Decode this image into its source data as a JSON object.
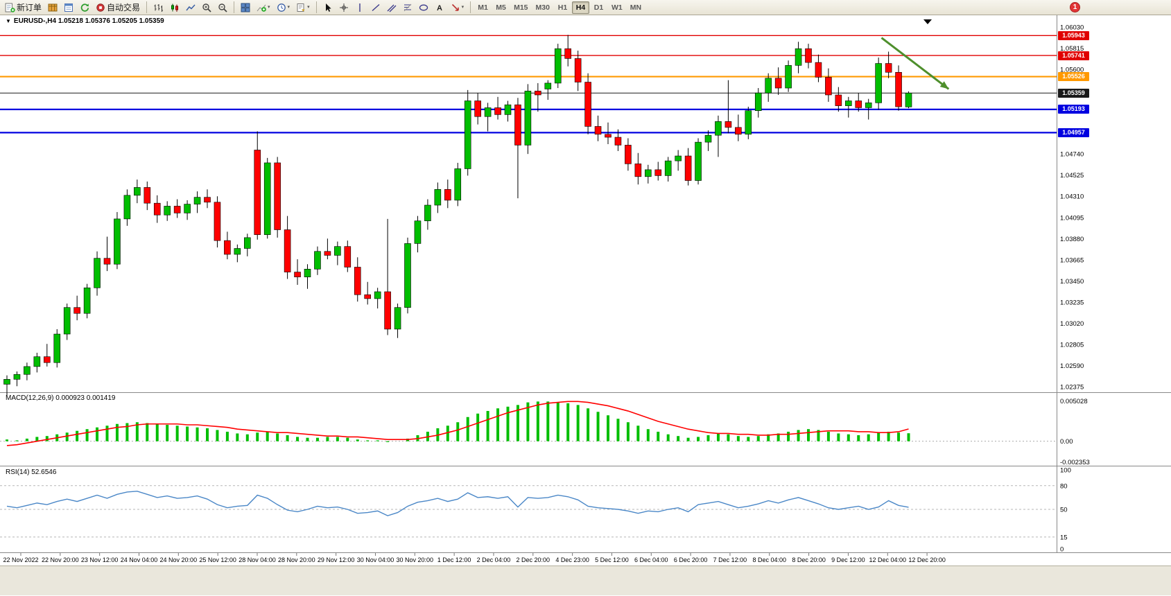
{
  "toolbar": {
    "new_order_label": "新订单",
    "auto_trading_label": "自动交易",
    "timeframes": [
      "M1",
      "M5",
      "M15",
      "M30",
      "H1",
      "H4",
      "D1",
      "W1",
      "MN"
    ],
    "active_timeframe": "H4",
    "notification_count": "1"
  },
  "chart_header": {
    "title": "EURUSD-,H4 1.05218 1.05376 1.05205 1.05359"
  },
  "panels": {
    "macd_label": "MACD(12,26,9) 0.000923 0.001419",
    "rsi_label": "RSI(14) 52.6546"
  },
  "chart_data": {
    "type": "candlestick",
    "symbol": "EURUSD-",
    "timeframe": "H4",
    "current_ohlc": {
      "open": 1.05218,
      "high": 1.05376,
      "low": 1.05205,
      "close": 1.05359
    },
    "colors": {
      "up": "#00BE00",
      "down": "#FF0000",
      "wick": "#000000",
      "background": "#FFFFFF",
      "macd_histogram": "#00BE00",
      "macd_signal": "#FF0000",
      "rsi_line": "#4A87C7",
      "arrow": "#4E8F2C"
    },
    "y_axis": {
      "min": 1.02375,
      "max": 1.0603,
      "tick_step": 0.00215,
      "ticks": [
        "1.06030",
        "1.05815",
        "1.05600",
        "1.05385",
        "1.05170",
        "1.04955",
        "1.04740",
        "1.04525",
        "1.04310",
        "1.04095",
        "1.03880",
        "1.03665",
        "1.03450",
        "1.03235",
        "1.03020",
        "1.02805",
        "1.02590",
        "1.02375"
      ]
    },
    "levels": [
      {
        "value": 1.05943,
        "badge_text": "1.05943",
        "color": "#E00000",
        "width": 1.4
      },
      {
        "value": 1.05741,
        "badge_text": "1.05741",
        "color": "#E00000",
        "width": 1.4
      },
      {
        "value": 1.05526,
        "badge_text": "1.05526",
        "color": "#FF9900",
        "width": 2.2
      },
      {
        "value": 1.05359,
        "badge_text": "1.05359",
        "color": "#1A1A1A",
        "width": 1
      },
      {
        "value": 1.05193,
        "badge_text": "1.05193",
        "color": "#0000E0",
        "width": 2.2
      },
      {
        "value": 1.04957,
        "badge_text": "1.04957",
        "color": "#0000E0",
        "width": 2.2
      }
    ],
    "candles": [
      [
        1.024,
        1.0249,
        1.0228,
        1.0245
      ],
      [
        1.0245,
        1.0253,
        1.0238,
        1.025
      ],
      [
        1.025,
        1.0262,
        1.0244,
        1.0258
      ],
      [
        1.0258,
        1.0272,
        1.0252,
        1.0268
      ],
      [
        1.0268,
        1.0281,
        1.0258,
        1.0262
      ],
      [
        1.0262,
        1.0296,
        1.0257,
        1.0291
      ],
      [
        1.0291,
        1.0322,
        1.0285,
        1.0318
      ],
      [
        1.0318,
        1.033,
        1.0305,
        1.0312
      ],
      [
        1.0312,
        1.0342,
        1.0307,
        1.0338
      ],
      [
        1.0338,
        1.0375,
        1.033,
        1.0368
      ],
      [
        1.0368,
        1.039,
        1.0355,
        1.0362
      ],
      [
        1.0362,
        1.0415,
        1.0357,
        1.0408
      ],
      [
        1.0408,
        1.0438,
        1.0401,
        1.0432
      ],
      [
        1.0432,
        1.0448,
        1.0424,
        1.044
      ],
      [
        1.044,
        1.0446,
        1.0417,
        1.0424
      ],
      [
        1.0424,
        1.0432,
        1.0404,
        1.0412
      ],
      [
        1.0412,
        1.0426,
        1.0406,
        1.0421
      ],
      [
        1.0421,
        1.0428,
        1.0409,
        1.0414
      ],
      [
        1.0414,
        1.0427,
        1.0407,
        1.0423
      ],
      [
        1.0423,
        1.0436,
        1.0414,
        1.043
      ],
      [
        1.043,
        1.0438,
        1.0419,
        1.0425
      ],
      [
        1.0425,
        1.0431,
        1.0379,
        1.0386
      ],
      [
        1.0386,
        1.0395,
        1.0367,
        1.0372
      ],
      [
        1.0372,
        1.0382,
        1.0364,
        1.0378
      ],
      [
        1.0378,
        1.0393,
        1.037,
        1.0389
      ],
      [
        1.0478,
        1.0497,
        1.0387,
        1.0392
      ],
      [
        1.0392,
        1.047,
        1.0388,
        1.0465
      ],
      [
        1.0465,
        1.0471,
        1.0389,
        1.0397
      ],
      [
        1.0397,
        1.0411,
        1.0347,
        1.0354
      ],
      [
        1.0354,
        1.0367,
        1.0341,
        1.0349
      ],
      [
        1.0349,
        1.0362,
        1.0337,
        1.0357
      ],
      [
        1.0357,
        1.038,
        1.0351,
        1.0375
      ],
      [
        1.0375,
        1.0388,
        1.0367,
        1.0371
      ],
      [
        1.0371,
        1.0385,
        1.0361,
        1.038
      ],
      [
        1.038,
        1.0386,
        1.0354,
        1.0359
      ],
      [
        1.0359,
        1.0369,
        1.0324,
        1.0331
      ],
      [
        1.0331,
        1.0344,
        1.0321,
        1.0327
      ],
      [
        1.0327,
        1.0338,
        1.0317,
        1.0334
      ],
      [
        1.0334,
        1.0408,
        1.029,
        1.0296
      ],
      [
        1.0296,
        1.0322,
        1.0287,
        1.0318
      ],
      [
        1.0318,
        1.0389,
        1.0312,
        1.0383
      ],
      [
        1.0383,
        1.0411,
        1.0374,
        1.0406
      ],
      [
        1.0406,
        1.0428,
        1.0397,
        1.0422
      ],
      [
        1.0422,
        1.0445,
        1.0414,
        1.0438
      ],
      [
        1.0438,
        1.0448,
        1.0419,
        1.0427
      ],
      [
        1.0427,
        1.0465,
        1.0421,
        1.0459
      ],
      [
        1.0459,
        1.0539,
        1.0452,
        1.0528
      ],
      [
        1.0528,
        1.0536,
        1.0504,
        1.0512
      ],
      [
        1.0512,
        1.0526,
        1.0497,
        1.0521
      ],
      [
        1.0521,
        1.0532,
        1.0509,
        1.0514
      ],
      [
        1.0514,
        1.0528,
        1.0507,
        1.0524
      ],
      [
        1.0524,
        1.0531,
        1.0429,
        1.0483
      ],
      [
        1.0483,
        1.0545,
        1.0474,
        1.0538
      ],
      [
        1.0538,
        1.0546,
        1.0517,
        1.0534
      ],
      [
        1.054,
        1.0549,
        1.0529,
        1.0546
      ],
      [
        1.0546,
        1.0586,
        1.0541,
        1.0581
      ],
      [
        1.0581,
        1.0595,
        1.0563,
        1.0571
      ],
      [
        1.0571,
        1.0579,
        1.0538,
        1.0547
      ],
      [
        1.0547,
        1.0556,
        1.0494,
        1.0502
      ],
      [
        1.0502,
        1.0513,
        1.0487,
        1.0494
      ],
      [
        1.0494,
        1.0506,
        1.0484,
        1.0491
      ],
      [
        1.0491,
        1.0499,
        1.0477,
        1.0483
      ],
      [
        1.0483,
        1.049,
        1.0457,
        1.0464
      ],
      [
        1.0464,
        1.0475,
        1.0443,
        1.0451
      ],
      [
        1.0451,
        1.0463,
        1.0444,
        1.0458
      ],
      [
        1.0458,
        1.0466,
        1.0447,
        1.0452
      ],
      [
        1.0452,
        1.0471,
        1.0446,
        1.0467
      ],
      [
        1.0467,
        1.0478,
        1.0457,
        1.0472
      ],
      [
        1.0472,
        1.048,
        1.0442,
        1.0447
      ],
      [
        1.0447,
        1.049,
        1.0443,
        1.0486
      ],
      [
        1.0486,
        1.0498,
        1.0477,
        1.0493
      ],
      [
        1.0493,
        1.0513,
        1.0471,
        1.0507
      ],
      [
        1.0507,
        1.0549,
        1.0495,
        1.0501
      ],
      [
        1.0501,
        1.0514,
        1.0487,
        1.0494
      ],
      [
        1.0494,
        1.0522,
        1.0489,
        1.0518
      ],
      [
        1.0518,
        1.0541,
        1.0511,
        1.0536
      ],
      [
        1.0536,
        1.0556,
        1.0527,
        1.0551
      ],
      [
        1.0551,
        1.0562,
        1.0534,
        1.0541
      ],
      [
        1.0541,
        1.0569,
        1.0537,
        1.0564
      ],
      [
        1.0564,
        1.0588,
        1.0556,
        1.0581
      ],
      [
        1.0581,
        1.0586,
        1.0561,
        1.0567
      ],
      [
        1.0567,
        1.0575,
        1.0547,
        1.0552
      ],
      [
        1.0552,
        1.0561,
        1.0527,
        1.0534
      ],
      [
        1.0534,
        1.0542,
        1.0517,
        1.0523
      ],
      [
        1.0523,
        1.0532,
        1.0511,
        1.0528
      ],
      [
        1.0528,
        1.0536,
        1.0517,
        1.0521
      ],
      [
        1.0521,
        1.053,
        1.0509,
        1.0526
      ],
      [
        1.0526,
        1.0572,
        1.0519,
        1.0566
      ],
      [
        1.0566,
        1.0578,
        1.0551,
        1.0557
      ],
      [
        1.0557,
        1.0564,
        1.0518,
        1.0522
      ],
      [
        1.05218,
        1.05376,
        1.05205,
        1.05359
      ]
    ],
    "x_labels": [
      "22 Nov 2022",
      "22 Nov 20:00",
      "23 Nov 12:00",
      "24 Nov 04:00",
      "24 Nov 20:00",
      "25 Nov 12:00",
      "28 Nov 04:00",
      "28 Nov 20:00",
      "29 Nov 12:00",
      "30 Nov 04:00",
      "30 Nov 20:00",
      "1 Dec 12:00",
      "2 Dec 04:00",
      "2 Dec 20:00",
      "4 Dec 23:00",
      "5 Dec 12:00",
      "6 Dec 04:00",
      "6 Dec 20:00",
      "7 Dec 12:00",
      "8 Dec 04:00",
      "8 Dec 20:00",
      "9 Dec 12:00",
      "12 Dec 04:00",
      "12 Dec 20:00"
    ],
    "arrow_annotation": {
      "from_index": 87.3,
      "from_price": 1.0592,
      "to_index": 94.0,
      "to_price": 1.054,
      "width": 3
    },
    "macd": {
      "label": "MACD(12,26,9)",
      "value_histogram": "0.000923",
      "value_signal": "0.001419",
      "axis_max": 0.005028,
      "axis_min": -0.002353,
      "axis_labels": [
        "0.005028",
        "0.00",
        "-0.002353"
      ],
      "histogram": [
        0.0002,
        0.0001,
        0.0003,
        0.0005,
        0.0006,
        0.0008,
        0.001,
        0.0012,
        0.0014,
        0.0016,
        0.0018,
        0.002,
        0.0021,
        0.0022,
        0.0021,
        0.002,
        0.0019,
        0.0018,
        0.0017,
        0.0016,
        0.0015,
        0.0013,
        0.0011,
        0.0009,
        0.0008,
        0.001,
        0.0011,
        0.0009,
        0.0007,
        0.0005,
        0.0004,
        0.0004,
        0.0005,
        0.0005,
        0.0004,
        0.0002,
        0.0001,
        0.0001,
        -0.0001,
        0.0,
        0.0003,
        0.0007,
        0.0011,
        0.0015,
        0.0018,
        0.0022,
        0.0028,
        0.0032,
        0.0035,
        0.0038,
        0.004,
        0.0042,
        0.0045,
        0.0046,
        0.0046,
        0.0045,
        0.0044,
        0.0042,
        0.0038,
        0.0034,
        0.003,
        0.0026,
        0.0022,
        0.0018,
        0.0014,
        0.0011,
        0.0008,
        0.0006,
        0.0004,
        0.0005,
        0.0007,
        0.0009,
        0.0008,
        0.0006,
        0.0005,
        0.0006,
        0.0008,
        0.0009,
        0.0011,
        0.0013,
        0.0014,
        0.0013,
        0.0011,
        0.0009,
        0.0008,
        0.0007,
        0.0008,
        0.001,
        0.0011,
        0.001,
        0.000923
      ],
      "signal": [
        -0.0005,
        -0.0004,
        -0.0002,
        0.0,
        0.0002,
        0.0004,
        0.0006,
        0.0008,
        0.001,
        0.0012,
        0.0014,
        0.0016,
        0.0017,
        0.0019,
        0.002,
        0.002,
        0.002,
        0.002,
        0.0019,
        0.0019,
        0.0018,
        0.0017,
        0.0016,
        0.0014,
        0.0013,
        0.0012,
        0.0011,
        0.001,
        0.001,
        0.0009,
        0.0008,
        0.0007,
        0.0006,
        0.0006,
        0.0005,
        0.0005,
        0.0004,
        0.0003,
        0.0002,
        0.0002,
        0.0002,
        0.0003,
        0.0005,
        0.0007,
        0.001,
        0.0013,
        0.0017,
        0.0021,
        0.0025,
        0.0029,
        0.0033,
        0.0036,
        0.0039,
        0.0042,
        0.0044,
        0.0045,
        0.0046,
        0.0046,
        0.0045,
        0.0043,
        0.0041,
        0.0038,
        0.0035,
        0.0031,
        0.0027,
        0.0023,
        0.002,
        0.0017,
        0.0014,
        0.0012,
        0.001,
        0.0009,
        0.0009,
        0.0008,
        0.0008,
        0.0007,
        0.0007,
        0.0008,
        0.0008,
        0.0009,
        0.001,
        0.0011,
        0.0012,
        0.0012,
        0.0012,
        0.0011,
        0.0011,
        0.001,
        0.001,
        0.0011,
        0.001419
      ]
    },
    "rsi": {
      "label": "RSI(14)",
      "value": "52.6546",
      "axis_labels": [
        "100",
        "80",
        "50",
        "15",
        "0"
      ],
      "level_lines": [
        80,
        50,
        15
      ],
      "series": [
        54,
        52,
        55,
        58,
        56,
        60,
        63,
        60,
        64,
        68,
        64,
        69,
        72,
        73,
        69,
        65,
        67,
        64,
        65,
        67,
        63,
        56,
        52,
        54,
        55,
        68,
        64,
        56,
        49,
        47,
        50,
        54,
        52,
        53,
        50,
        45,
        46,
        48,
        42,
        46,
        54,
        59,
        61,
        64,
        60,
        63,
        71,
        65,
        66,
        64,
        66,
        53,
        65,
        64,
        65,
        68,
        66,
        62,
        54,
        52,
        51,
        50,
        48,
        45,
        48,
        47,
        50,
        52,
        47,
        56,
        58,
        60,
        56,
        52,
        54,
        57,
        61,
        58,
        62,
        65,
        61,
        57,
        52,
        50,
        52,
        54,
        50,
        53,
        61,
        55,
        52.65
      ]
    }
  }
}
